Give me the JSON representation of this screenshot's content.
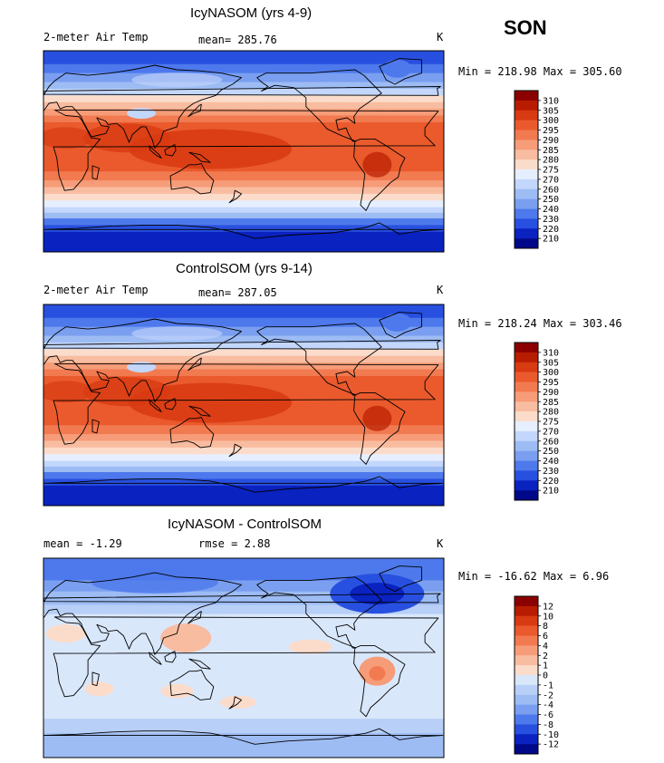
{
  "season": "SON",
  "panels": [
    {
      "title": "IcyNASOM (yrs 4-9)",
      "left_label": "2-meter Air Temp",
      "center_label": "mean= 285.76",
      "units": "K",
      "minmax": "Min = 218.98 Max = 305.60",
      "map_kind": "temperature",
      "colorbar": {
        "labels": [
          "310",
          "305",
          "300",
          "295",
          "290",
          "285",
          "280",
          "275",
          "270",
          "260",
          "250",
          "240",
          "230",
          "220",
          "210"
        ],
        "colors": [
          "#8b0000",
          "#b81c00",
          "#d83a12",
          "#ea5a2c",
          "#f27a50",
          "#f69c78",
          "#f8bca0",
          "#fbdccb",
          "#e6efff",
          "#c3d6fb",
          "#9dbcf4",
          "#7a9ff0",
          "#4e79ec",
          "#2850e0",
          "#0a22c0",
          "#00088a"
        ]
      }
    },
    {
      "title": "ControlSOM (yrs 9-14)",
      "left_label": "2-meter Air Temp",
      "center_label": "mean= 287.05",
      "units": "K",
      "minmax": "Min = 218.24 Max = 303.46",
      "map_kind": "temperature",
      "colorbar": {
        "labels": [
          "310",
          "305",
          "300",
          "295",
          "290",
          "285",
          "280",
          "275",
          "270",
          "260",
          "250",
          "240",
          "230",
          "220",
          "210"
        ],
        "colors": [
          "#8b0000",
          "#b81c00",
          "#d83a12",
          "#ea5a2c",
          "#f27a50",
          "#f69c78",
          "#f8bca0",
          "#fbdccb",
          "#e6efff",
          "#c3d6fb",
          "#9dbcf4",
          "#7a9ff0",
          "#4e79ec",
          "#2850e0",
          "#0a22c0",
          "#00088a"
        ]
      }
    },
    {
      "title": "IcyNASOM - ControlSOM",
      "left_label": "mean = -1.29",
      "center_label": "rmse = 2.88",
      "units": "K",
      "minmax": "Min = -16.62 Max = 6.96",
      "map_kind": "difference",
      "colorbar": {
        "labels": [
          "12",
          "10",
          "8",
          "6",
          "4",
          "2",
          "1",
          "0",
          "-1",
          "-2",
          "-4",
          "-6",
          "-8",
          "-10",
          "-12"
        ],
        "colors": [
          "#8b0000",
          "#b81c00",
          "#d83a12",
          "#ea5a2c",
          "#f27a50",
          "#f69c78",
          "#f8bca0",
          "#fbdccb",
          "#d9e7fb",
          "#b8cff7",
          "#9dbcf4",
          "#7a9ff0",
          "#4e79ec",
          "#2850e0",
          "#0a22c0",
          "#00088a"
        ]
      }
    }
  ]
}
